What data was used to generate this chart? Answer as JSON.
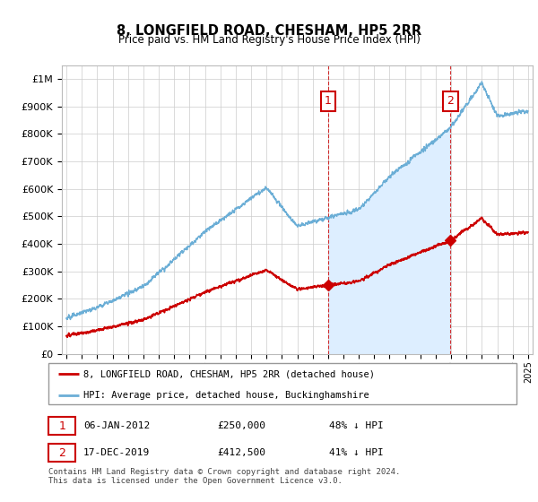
{
  "title": "8, LONGFIELD ROAD, CHESHAM, HP5 2RR",
  "subtitle": "Price paid vs. HM Land Registry's House Price Index (HPI)",
  "ytick_values": [
    0,
    100000,
    200000,
    300000,
    400000,
    500000,
    600000,
    700000,
    800000,
    900000,
    1000000
  ],
  "ytick_labels": [
    "£0",
    "£100K",
    "£200K",
    "£300K",
    "£400K",
    "£500K",
    "£600K",
    "£700K",
    "£800K",
    "£900K",
    "£1M"
  ],
  "ylim": [
    0,
    1050000
  ],
  "sale1_t": 2012.014,
  "sale1_price": 250000,
  "sale2_t": 2019.956,
  "sale2_price": 412500,
  "hpi_line_color": "#6baed6",
  "hpi_fill_color": "#ddeeff",
  "price_color": "#cc0000",
  "sale_marker_color": "#cc0000",
  "box_edge_color": "#cc0000",
  "grid_color": "#cccccc",
  "background_color": "#ffffff",
  "legend_label_price": "8, LONGFIELD ROAD, CHESHAM, HP5 2RR (detached house)",
  "legend_label_hpi": "HPI: Average price, detached house, Buckinghamshire",
  "footnote": "Contains HM Land Registry data © Crown copyright and database right 2024.\nThis data is licensed under the Open Government Licence v3.0.",
  "xmin": 1995,
  "xmax": 2025,
  "anno1_label": "1",
  "anno2_label": "2",
  "row1_date": "06-JAN-2012",
  "row1_price": "£250,000",
  "row1_hpi": "48% ↓ HPI",
  "row2_date": "17-DEC-2019",
  "row2_price": "£412,500",
  "row2_hpi": "41% ↓ HPI"
}
